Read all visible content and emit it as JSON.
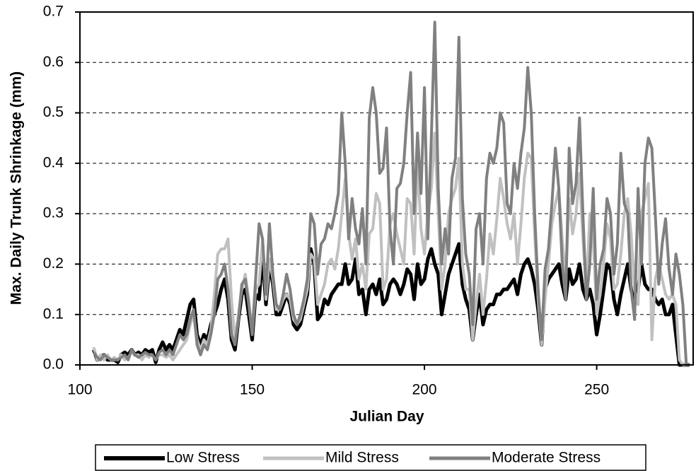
{
  "chart_data": {
    "type": "line",
    "xlabel": "Julian Day",
    "ylabel": "Max. Daily Trunk Shrinkage (mm)",
    "x": [
      104,
      105,
      106,
      107,
      108,
      109,
      110,
      111,
      112,
      113,
      114,
      115,
      116,
      117,
      118,
      119,
      120,
      121,
      122,
      123,
      124,
      125,
      126,
      127,
      128,
      129,
      130,
      131,
      132,
      133,
      134,
      135,
      136,
      137,
      138,
      139,
      140,
      141,
      142,
      143,
      144,
      145,
      146,
      147,
      148,
      149,
      150,
      151,
      152,
      153,
      154,
      155,
      156,
      157,
      158,
      159,
      160,
      161,
      162,
      163,
      164,
      165,
      166,
      167,
      168,
      169,
      170,
      171,
      172,
      173,
      174,
      175,
      176,
      177,
      178,
      179,
      180,
      181,
      182,
      183,
      184,
      185,
      186,
      187,
      188,
      189,
      190,
      191,
      192,
      193,
      194,
      195,
      196,
      197,
      198,
      199,
      200,
      201,
      202,
      203,
      204,
      205,
      206,
      207,
      208,
      209,
      210,
      211,
      212,
      213,
      214,
      215,
      216,
      217,
      218,
      219,
      220,
      221,
      222,
      223,
      224,
      225,
      226,
      227,
      228,
      229,
      230,
      231,
      232,
      233,
      234,
      235,
      236,
      237,
      238,
      239,
      240,
      241,
      242,
      243,
      244,
      245,
      246,
      247,
      248,
      249,
      250,
      251,
      252,
      253,
      254,
      255,
      256,
      257,
      258,
      259,
      260,
      261,
      262,
      263,
      264,
      265,
      266,
      267,
      268,
      269,
      270,
      271,
      272,
      273,
      274,
      275,
      276,
      277
    ],
    "series": [
      {
        "name": "Low Stress",
        "color": "#000000",
        "width": 5,
        "values": [
          0.03,
          0.01,
          0.015,
          0.02,
          0.01,
          0.01,
          0.01,
          0.005,
          0.02,
          0.025,
          0.02,
          0.03,
          0.02,
          0.025,
          0.02,
          0.03,
          0.025,
          0.03,
          0.005,
          0.03,
          0.045,
          0.03,
          0.04,
          0.03,
          0.05,
          0.07,
          0.06,
          0.09,
          0.12,
          0.13,
          0.06,
          0.04,
          0.06,
          0.05,
          0.08,
          0.1,
          0.12,
          0.15,
          0.17,
          0.13,
          0.05,
          0.03,
          0.09,
          0.14,
          0.15,
          0.1,
          0.05,
          0.14,
          0.13,
          0.22,
          0.12,
          0.2,
          0.16,
          0.1,
          0.1,
          0.12,
          0.14,
          0.12,
          0.08,
          0.07,
          0.08,
          0.11,
          0.14,
          0.23,
          0.2,
          0.09,
          0.1,
          0.13,
          0.12,
          0.14,
          0.15,
          0.16,
          0.16,
          0.2,
          0.16,
          0.17,
          0.21,
          0.14,
          0.15,
          0.1,
          0.15,
          0.16,
          0.14,
          0.17,
          0.12,
          0.13,
          0.16,
          0.17,
          0.16,
          0.14,
          0.16,
          0.19,
          0.18,
          0.13,
          0.2,
          0.16,
          0.17,
          0.21,
          0.23,
          0.2,
          0.18,
          0.1,
          0.14,
          0.18,
          0.2,
          0.22,
          0.24,
          0.16,
          0.13,
          0.11,
          0.05,
          0.1,
          0.14,
          0.08,
          0.11,
          0.12,
          0.12,
          0.14,
          0.14,
          0.15,
          0.15,
          0.16,
          0.17,
          0.14,
          0.18,
          0.2,
          0.21,
          0.19,
          0.16,
          0.11,
          0.04,
          0.15,
          0.17,
          0.18,
          0.19,
          0.2,
          0.16,
          0.13,
          0.19,
          0.16,
          0.17,
          0.2,
          0.15,
          0.13,
          0.15,
          0.12,
          0.06,
          0.1,
          0.15,
          0.2,
          0.19,
          0.13,
          0.1,
          0.14,
          0.17,
          0.2,
          0.15,
          0.12,
          0.15,
          0.2,
          0.16,
          0.15,
          0.15,
          0.13,
          0.12,
          0.13,
          0.1,
          0.1,
          0.12,
          0.06,
          0.0,
          0.0,
          0.0,
          0.0
        ]
      },
      {
        "name": "Mild Stress",
        "color": "#c0c0c0",
        "width": 4,
        "values": [
          0.035,
          0.01,
          0.02,
          0.01,
          0.02,
          0.01,
          0.015,
          0.01,
          0.02,
          0.01,
          0.015,
          0.025,
          0.02,
          0.02,
          0.01,
          0.02,
          0.015,
          0.02,
          0.01,
          0.02,
          0.02,
          0.015,
          0.02,
          0.01,
          0.02,
          0.03,
          0.04,
          0.05,
          0.08,
          0.1,
          0.05,
          0.03,
          0.05,
          0.04,
          0.07,
          0.14,
          0.22,
          0.23,
          0.23,
          0.25,
          0.13,
          0.05,
          0.1,
          0.15,
          0.18,
          0.13,
          0.06,
          0.15,
          0.16,
          0.25,
          0.13,
          0.21,
          0.17,
          0.11,
          0.11,
          0.13,
          0.14,
          0.13,
          0.09,
          0.08,
          0.09,
          0.12,
          0.15,
          0.22,
          0.21,
          0.12,
          0.14,
          0.16,
          0.2,
          0.21,
          0.19,
          0.23,
          0.3,
          0.37,
          0.26,
          0.21,
          0.25,
          0.17,
          0.2,
          0.15,
          0.26,
          0.27,
          0.34,
          0.32,
          0.15,
          0.17,
          0.28,
          0.3,
          0.26,
          0.23,
          0.2,
          0.33,
          0.32,
          0.22,
          0.4,
          0.27,
          0.22,
          0.3,
          0.35,
          0.46,
          0.3,
          0.15,
          0.2,
          0.3,
          0.33,
          0.35,
          0.41,
          0.2,
          0.15,
          0.15,
          0.05,
          0.12,
          0.18,
          0.1,
          0.17,
          0.26,
          0.22,
          0.29,
          0.37,
          0.33,
          0.28,
          0.25,
          0.3,
          0.2,
          0.28,
          0.37,
          0.42,
          0.41,
          0.26,
          0.13,
          0.04,
          0.13,
          0.2,
          0.28,
          0.32,
          0.35,
          0.25,
          0.17,
          0.33,
          0.26,
          0.3,
          0.38,
          0.25,
          0.15,
          0.3,
          0.25,
          0.1,
          0.14,
          0.2,
          0.28,
          0.25,
          0.15,
          0.16,
          0.22,
          0.3,
          0.33,
          0.26,
          0.15,
          0.12,
          0.3,
          0.33,
          0.36,
          0.05,
          0.17,
          0.2,
          0.17,
          0.14,
          0.13,
          0.14,
          0.12,
          0.01,
          0.0,
          0.0,
          0.0
        ]
      },
      {
        "name": "Moderate Stress",
        "color": "#808080",
        "width": 4,
        "values": [
          0.025,
          0.015,
          0.01,
          0.02,
          0.015,
          0.01,
          0.01,
          0.01,
          0.015,
          0.02,
          0.01,
          0.03,
          0.02,
          0.015,
          0.02,
          0.025,
          0.02,
          0.02,
          0.01,
          0.025,
          0.03,
          0.02,
          0.03,
          0.02,
          0.04,
          0.06,
          0.05,
          0.06,
          0.09,
          0.11,
          0.04,
          0.02,
          0.04,
          0.03,
          0.06,
          0.1,
          0.17,
          0.18,
          0.2,
          0.15,
          0.06,
          0.04,
          0.09,
          0.16,
          0.17,
          0.12,
          0.06,
          0.17,
          0.28,
          0.25,
          0.14,
          0.28,
          0.18,
          0.12,
          0.11,
          0.14,
          0.18,
          0.15,
          0.1,
          0.08,
          0.1,
          0.13,
          0.17,
          0.3,
          0.28,
          0.18,
          0.24,
          0.25,
          0.28,
          0.27,
          0.3,
          0.34,
          0.5,
          0.4,
          0.25,
          0.33,
          0.27,
          0.24,
          0.31,
          0.2,
          0.49,
          0.55,
          0.5,
          0.38,
          0.39,
          0.47,
          0.27,
          0.2,
          0.35,
          0.36,
          0.4,
          0.5,
          0.58,
          0.3,
          0.46,
          0.34,
          0.55,
          0.25,
          0.45,
          0.68,
          0.35,
          0.2,
          0.27,
          0.22,
          0.37,
          0.41,
          0.65,
          0.33,
          0.22,
          0.18,
          0.08,
          0.27,
          0.3,
          0.2,
          0.37,
          0.42,
          0.4,
          0.43,
          0.5,
          0.48,
          0.32,
          0.3,
          0.4,
          0.35,
          0.42,
          0.47,
          0.59,
          0.5,
          0.3,
          0.15,
          0.05,
          0.19,
          0.23,
          0.32,
          0.43,
          0.35,
          0.2,
          0.13,
          0.43,
          0.32,
          0.36,
          0.49,
          0.3,
          0.13,
          0.2,
          0.35,
          0.13,
          0.2,
          0.23,
          0.33,
          0.3,
          0.18,
          0.24,
          0.42,
          0.32,
          0.3,
          0.15,
          0.09,
          0.35,
          0.2,
          0.4,
          0.45,
          0.43,
          0.3,
          0.16,
          0.24,
          0.29,
          0.19,
          0.14,
          0.22,
          0.18,
          0.12,
          0.0,
          0.0
        ]
      }
    ],
    "xlim": [
      100,
      278
    ],
    "xticks": [
      100,
      150,
      200,
      250
    ],
    "ylim": [
      0,
      0.7
    ],
    "yticks": [
      {
        "value": 0,
        "label": "0.0"
      },
      0.1,
      0.2,
      0.3,
      0.4,
      0.5,
      0.6,
      0.7
    ],
    "grid": true,
    "legend": "bottom"
  }
}
